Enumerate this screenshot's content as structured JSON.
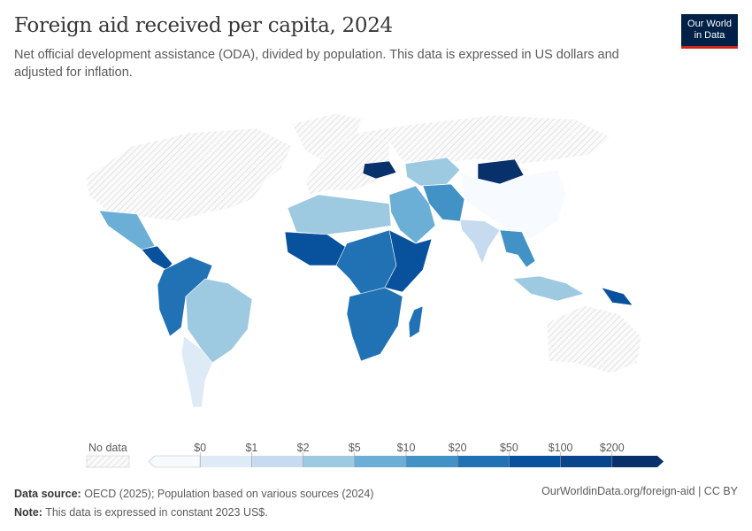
{
  "header": {
    "title": "Foreign aid received per capita, 2024",
    "subtitle": "Net official development assistance (ODA), divided by population. This data is expressed in US dollars and adjusted for inflation.",
    "logo_line1": "Our World",
    "logo_line2": "in Data"
  },
  "chart_data": {
    "type": "choropleth-map",
    "title": "Foreign aid received per capita, 2024",
    "no_data_label": "No data",
    "legend_ticks": [
      "$0",
      "$1",
      "$2",
      "$5",
      "$10",
      "$20",
      "$50",
      "$100",
      "$200"
    ],
    "bin_colors": [
      "#f7fbff",
      "#deebf7",
      "#c6dbef",
      "#9ecae1",
      "#6baed6",
      "#4292c6",
      "#2171b5",
      "#08519c",
      "#08458a",
      "#08306b"
    ],
    "regions": [
      {
        "name": "United States & Canada",
        "bin": null
      },
      {
        "name": "Greenland",
        "bin": null
      },
      {
        "name": "Mexico",
        "bin": 4
      },
      {
        "name": "Central America",
        "bin": 7
      },
      {
        "name": "Colombia/Venezuela/Peru",
        "bin": 6
      },
      {
        "name": "Brazil",
        "bin": 3
      },
      {
        "name": "Argentina",
        "bin": 1
      },
      {
        "name": "Europe",
        "bin": null
      },
      {
        "name": "Russia",
        "bin": null
      },
      {
        "name": "Ukraine",
        "bin": 9
      },
      {
        "name": "Kazakhstan",
        "bin": 3
      },
      {
        "name": "Mongolia",
        "bin": 9
      },
      {
        "name": "China",
        "bin": 0
      },
      {
        "name": "India",
        "bin": 2
      },
      {
        "name": "Central Asia",
        "bin": 5
      },
      {
        "name": "Middle East",
        "bin": 4
      },
      {
        "name": "North Africa",
        "bin": 3
      },
      {
        "name": "West Africa",
        "bin": 7
      },
      {
        "name": "Central Africa",
        "bin": 6
      },
      {
        "name": "East Africa",
        "bin": 7
      },
      {
        "name": "Southern Africa",
        "bin": 6
      },
      {
        "name": "Madagascar",
        "bin": 6
      },
      {
        "name": "Southeast Asia",
        "bin": 5
      },
      {
        "name": "Indonesia",
        "bin": 3
      },
      {
        "name": "Papua New Guinea",
        "bin": 7
      },
      {
        "name": "Australia",
        "bin": null
      }
    ]
  },
  "footer": {
    "source_label": "Data source:",
    "source_text": "OECD (2025); Population based on various sources (2024)",
    "note_label": "Note:",
    "note_text": "This data is expressed in constant 2023 US$.",
    "url": "OurWorldinData.org/foreign-aid | CC BY"
  }
}
